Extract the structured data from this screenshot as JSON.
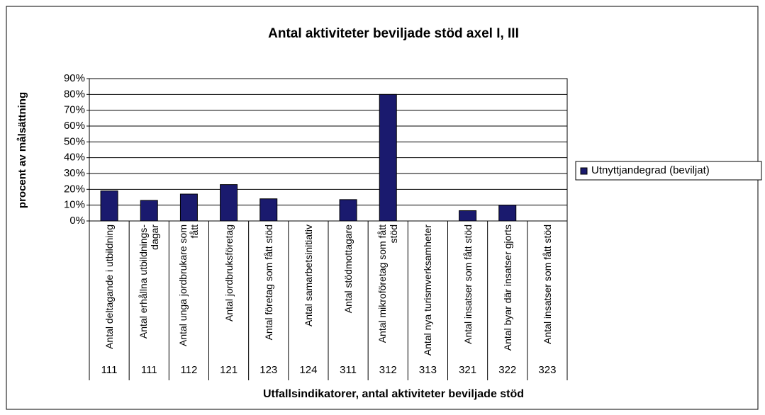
{
  "chart_data": {
    "type": "bar",
    "title": "Antal aktiviteter beviljade stöd axel I, III",
    "x_label": "Utfallsindikatorer, antal aktiviteter beviljade stöd",
    "y_label": "procent av målsättning",
    "categories": [
      "Antal deltagande i utbildning",
      "Antal erhållna utbildnings-dagar",
      "Antal unga jordbrukare som fått",
      "Antal jordbruksföretag",
      "Antal företag som fått stöd",
      "Antal samarbetsinitiativ",
      "Antal stödmottagare",
      "Antal mikroföretag som fått stöd",
      "Antal nya turismverksamheter",
      "Antal insatser som fått stöd",
      "Antal byar där insatser gjorts",
      "Antal insatser som fått stöd"
    ],
    "codes": [
      "111",
      "111",
      "112",
      "121",
      "123",
      "124",
      "311",
      "312",
      "313",
      "321",
      "322",
      "323"
    ],
    "series": [
      {
        "name": "Utnyttjandegrad (beviljat)",
        "color": "#1a1a6e",
        "values": [
          19,
          13,
          17,
          23,
          14,
          0,
          13.5,
          80,
          0,
          6.5,
          10,
          0
        ]
      }
    ],
    "ylim": [
      0,
      90
    ],
    "yticks": [
      {
        "value": 0,
        "label": "0%"
      },
      {
        "value": 10,
        "label": "10%"
      },
      {
        "value": 20,
        "label": "20%"
      },
      {
        "value": 30,
        "label": "30%"
      },
      {
        "value": 40,
        "label": "40%"
      },
      {
        "value": 50,
        "label": "50%"
      },
      {
        "value": 60,
        "label": "60%"
      },
      {
        "value": 70,
        "label": "70%"
      },
      {
        "value": 80,
        "label": "80%"
      },
      {
        "value": 90,
        "label": "90%"
      }
    ],
    "grid": true,
    "legend": "right"
  }
}
